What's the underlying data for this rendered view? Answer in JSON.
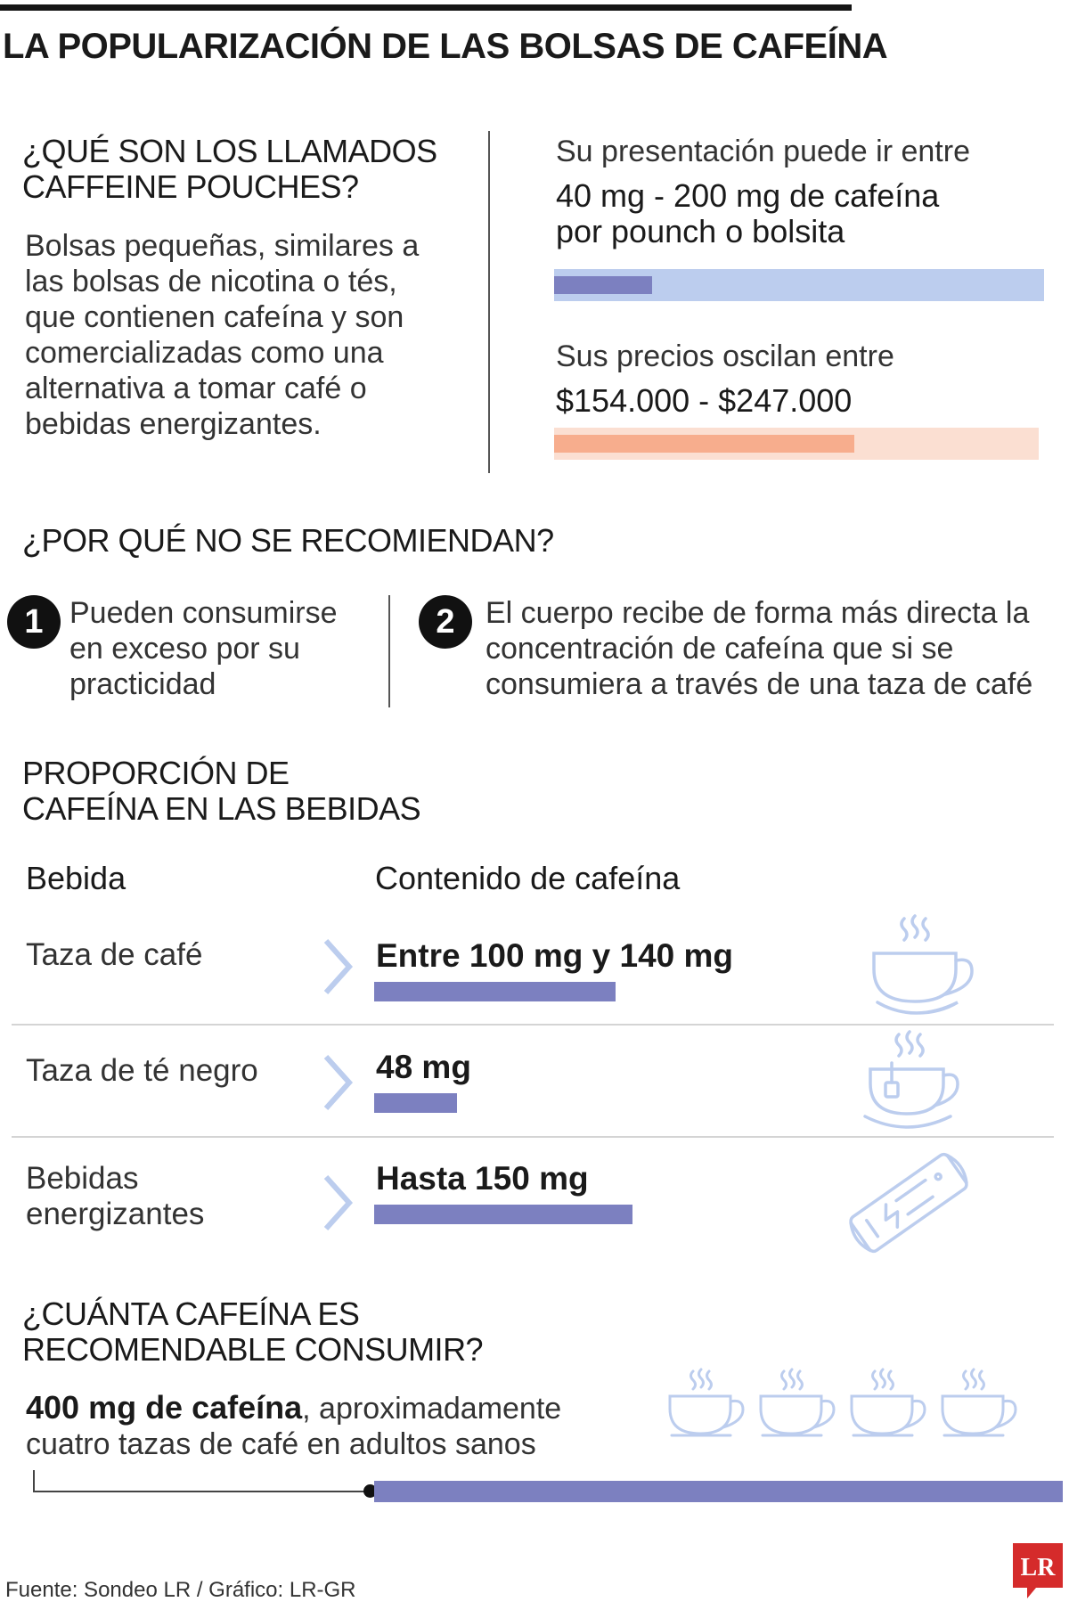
{
  "title": "LA POPULARIZACIÓN DE LAS BOLSAS DE CAFEÍNA",
  "what": {
    "heading_1": "¿QUÉ SON LOS LLAMADOS",
    "heading_2": "CAFFEINE POUCHES?",
    "lines": [
      "Bolsas pequeñas, similares a",
      "las bolsas de nicotina o tés,",
      "que contienen cafeína y son",
      "comercializadas como una",
      "alternativa a tomar café o",
      "bebidas energizantes."
    ]
  },
  "presentation": {
    "intro": "Su presentación puede ir entre",
    "value_1": "40 mg - 200 mg de cafeína",
    "value_2": "por pounch o bolsita",
    "min_fraction": 0.2,
    "colors": {
      "dark": "#7c80c0",
      "light": "#bccdee"
    }
  },
  "prices": {
    "intro": "Sus precios oscilan entre",
    "value": "$154.000 - $247.000",
    "min_fraction": 0.62,
    "colors": {
      "dark": "#f7ad8d",
      "light": "#fbdfd2"
    }
  },
  "why": {
    "heading": "¿POR QUÉ NO SE RECOMIENDAN?",
    "reasons": [
      {
        "number": "1",
        "lines": [
          "Pueden consumirse",
          "en exceso por su",
          "practicidad"
        ]
      },
      {
        "number": "2",
        "lines": [
          "El cuerpo recibe de forma más directa la",
          "concentración de cafeína que si se",
          "consumiera a través de una taza de café"
        ]
      }
    ]
  },
  "proportion": {
    "heading_1": "PROPORCIÓN DE",
    "heading_2": "CAFEÍNA EN LAS BEBIDAS",
    "col_drink": "Bebida",
    "col_content": "Contenido de cafeína",
    "rows": [
      {
        "label_lines": [
          "Taza de café"
        ],
        "value": "Entre 100 mg y 140 mg",
        "mg": 140,
        "icon": "coffee-cup-icon"
      },
      {
        "label_lines": [
          "Taza de té negro"
        ],
        "value": "48 mg",
        "mg": 48,
        "icon": "tea-cup-icon"
      },
      {
        "label_lines": [
          "Bebidas",
          "energizantes"
        ],
        "value": "Hasta 150 mg",
        "mg": 150,
        "icon": "energy-drink-can-icon"
      }
    ],
    "bar_color": "#7c80c0",
    "chevron_color": "#bccdee"
  },
  "recommended": {
    "heading_1": "¿CUÁNTA CAFEÍNA ES",
    "heading_2": "RECOMENDABLE CONSUMIR?",
    "bold": "400 mg de cafeína",
    "rest": ", aproximadamente",
    "line_2": "cuatro tazas de café en adultos sanos",
    "cups": 4,
    "icon": "coffee-cup-icon",
    "bar_color": "#7c80c0"
  },
  "source": "Fuente: Sondeo LR / Gráfico: LR-GR",
  "logo_text": "LR",
  "logo_color": "#d52b2b",
  "icon_color": "#bccdee"
}
